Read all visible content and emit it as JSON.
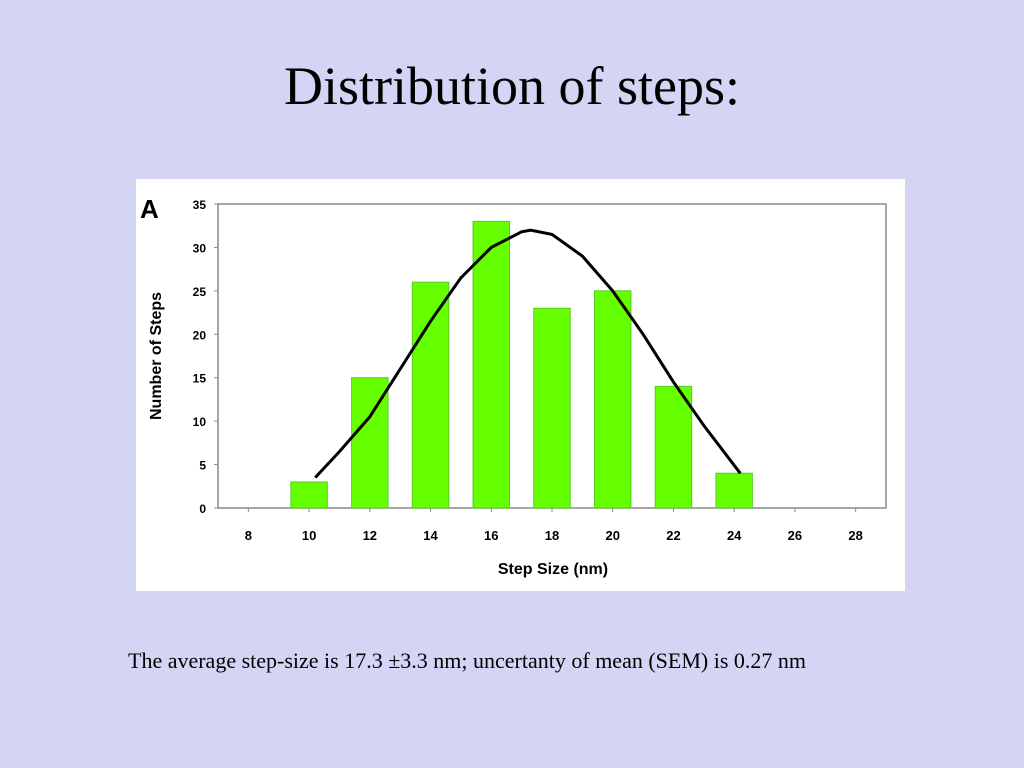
{
  "title": "Distribution of steps:",
  "caption": "The average step-size is 17.3 ±3.3 nm; uncertanty of mean (SEM) is 0.27 nm",
  "chart_data": {
    "type": "bar",
    "panel_label": "A",
    "x_label": "Step Size (nm)",
    "y_label": "Number of Steps",
    "x": [
      10,
      12,
      14,
      16,
      18,
      20,
      22,
      24
    ],
    "values": [
      3,
      15,
      26,
      33,
      23,
      25,
      14,
      4
    ],
    "color": "#66ff00",
    "curve": {
      "x": [
        10.2,
        11,
        12,
        13,
        14,
        15,
        16,
        17,
        17.3,
        18,
        19,
        20,
        21,
        22,
        23,
        24.2
      ],
      "values": [
        3.5,
        6.5,
        10.5,
        16,
        21.5,
        26.5,
        30,
        31.8,
        32,
        31.5,
        29,
        25,
        20,
        14.5,
        9.5,
        4
      ],
      "color": "#000000"
    },
    "xlim": [
      7,
      29
    ],
    "xticks": [
      8,
      10,
      12,
      14,
      16,
      18,
      20,
      22,
      24,
      26,
      28
    ],
    "ylim": [
      0,
      35
    ],
    "yticks": [
      0,
      5,
      10,
      15,
      20,
      25,
      30,
      35
    ],
    "grid": false
  }
}
